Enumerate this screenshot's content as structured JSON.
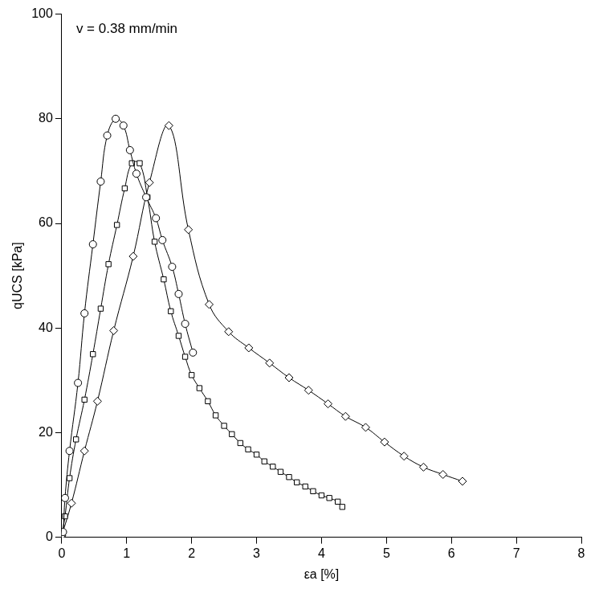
{
  "chart_data": {
    "type": "scatter",
    "annotation": "v = 0.38 mm/min",
    "x_label": "εa [%]",
    "y_label": "qUCS [kPa]",
    "xlim": [
      0,
      8
    ],
    "xticks": [
      0,
      1,
      2,
      3,
      4,
      5,
      6,
      7,
      8
    ],
    "ylim": [
      0,
      100
    ],
    "yticks": [
      0,
      20,
      40,
      60,
      80,
      100
    ],
    "grid": false,
    "series": [
      {
        "color": "#000000",
        "marker": "circle",
        "line_style": "solid",
        "x": [
          0,
          0.02,
          0.05,
          0.12,
          0.25,
          0.35,
          0.48,
          0.6,
          0.7,
          0.83,
          0.95,
          1.05,
          1.15,
          1.3,
          1.45,
          1.55,
          1.7,
          1.8,
          1.9,
          2.02
        ],
        "values": [
          0.5,
          1,
          7.5,
          16.5,
          29.5,
          42.8,
          56,
          68,
          76.8,
          80,
          78.7,
          74,
          69.5,
          65,
          61,
          56.8,
          51.7,
          46.5,
          40.8,
          35.3
        ]
      },
      {
        "color": "#000000",
        "marker": "square",
        "line_style": "solid",
        "x": [
          0,
          0.05,
          0.12,
          0.22,
          0.35,
          0.48,
          0.6,
          0.72,
          0.85,
          0.97,
          1.08,
          1.2,
          1.32,
          1.43,
          1.57,
          1.68,
          1.8,
          1.9,
          2.0,
          2.12,
          2.25,
          2.37,
          2.5,
          2.62,
          2.75,
          2.87,
          3.0,
          3.12,
          3.25,
          3.37,
          3.5,
          3.62,
          3.75,
          3.87,
          4.0,
          4.12,
          4.25,
          4.32
        ],
        "values": [
          0.3,
          4,
          11.3,
          18.7,
          26.3,
          35,
          43.7,
          52.2,
          59.7,
          66.7,
          71.5,
          71.5,
          65,
          56.5,
          49.3,
          43.2,
          38.5,
          34.5,
          31,
          28.5,
          26,
          23.3,
          21.3,
          19.7,
          18,
          16.8,
          15.8,
          14.5,
          13.5,
          12.5,
          11.5,
          10.5,
          9.7,
          8.8,
          8,
          7.5,
          6.8,
          5.8
        ]
      },
      {
        "color": "#000000",
        "marker": "diamond",
        "line_style": "solid",
        "x": [
          0,
          0.15,
          0.35,
          0.55,
          0.8,
          1.1,
          1.35,
          1.65,
          1.95,
          2.27,
          2.57,
          2.88,
          3.2,
          3.5,
          3.8,
          4.1,
          4.37,
          4.68,
          4.97,
          5.27,
          5.57,
          5.87,
          6.17
        ],
        "values": [
          0.3,
          6.5,
          16.5,
          26,
          39.5,
          53.7,
          67.8,
          78.7,
          58.8,
          44.5,
          39.3,
          36.2,
          33.3,
          30.5,
          28.1,
          25.5,
          23.1,
          21,
          18.2,
          15.5,
          13.4,
          12,
          10.7
        ]
      }
    ]
  }
}
